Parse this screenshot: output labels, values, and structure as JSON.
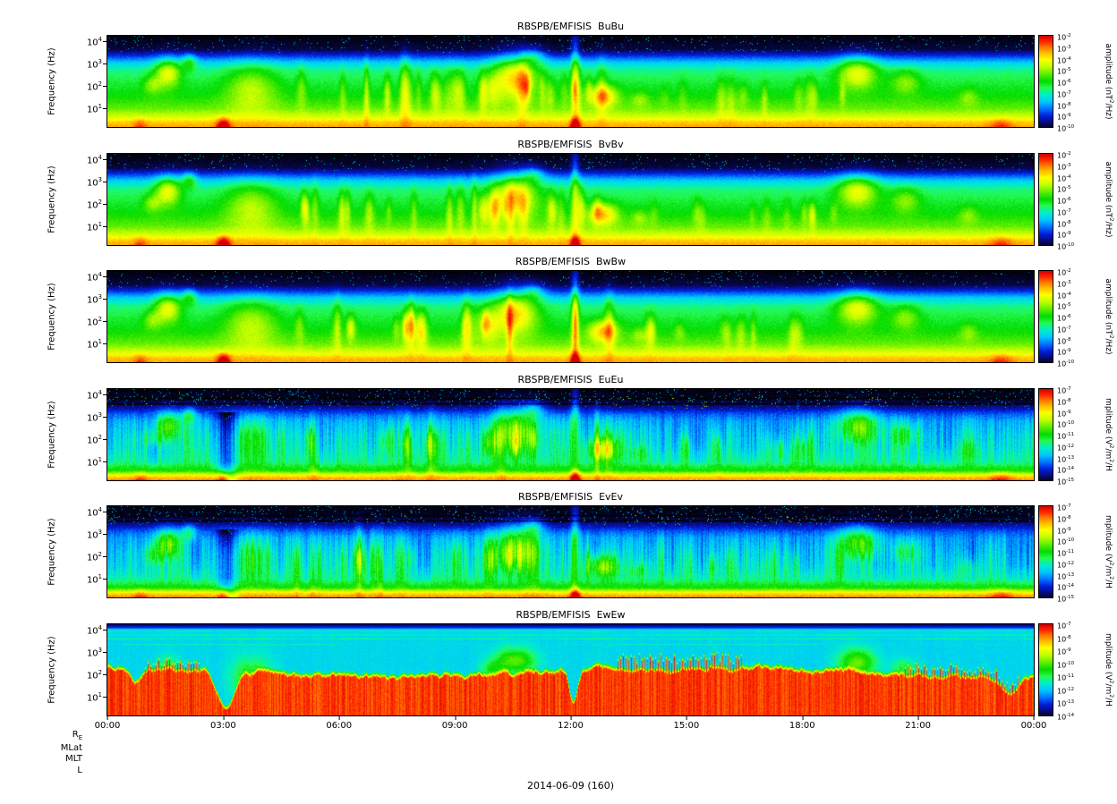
{
  "chart_data": [
    {
      "type": "heatmap",
      "title": "RBSPB/EMFISIS  BuBu",
      "ylabel": "Frequency (Hz)",
      "y_scale": "log",
      "y_ticks": [
        "10^4",
        "10^3",
        "10^2",
        "10^1"
      ],
      "colorbar": {
        "scale": "log",
        "label": "amplitude (nT^2/Hz)",
        "ticks": [
          "10^-2",
          "10^-3",
          "10^-4",
          "10^-5",
          "10^-6",
          "10^-7",
          "10^-8",
          "10^-9",
          "10^-10"
        ]
      }
    },
    {
      "type": "heatmap",
      "title": "RBSPB/EMFISIS  BvBv",
      "ylabel": "Frequency (Hz)",
      "y_scale": "log",
      "y_ticks": [
        "10^4",
        "10^3",
        "10^2",
        "10^1"
      ],
      "colorbar": {
        "scale": "log",
        "label": "amplitude (nT^2/Hz)",
        "ticks": [
          "10^-2",
          "10^-3",
          "10^-4",
          "10^-5",
          "10^-6",
          "10^-7",
          "10^-8",
          "10^-9",
          "10^-10"
        ]
      }
    },
    {
      "type": "heatmap",
      "title": "RBSPB/EMFISIS  BwBw",
      "ylabel": "Frequency (Hz)",
      "y_scale": "log",
      "y_ticks": [
        "10^4",
        "10^3",
        "10^2",
        "10^1"
      ],
      "colorbar": {
        "scale": "log",
        "label": "amplitude (nT^2/Hz)",
        "ticks": [
          "10^-2",
          "10^-3",
          "10^-4",
          "10^-5",
          "10^-6",
          "10^-7",
          "10^-8",
          "10^-9",
          "10^-10"
        ]
      }
    },
    {
      "type": "heatmap",
      "title": "RBSPB/EMFISIS  EuEu",
      "ylabel": "Frequency (Hz)",
      "y_scale": "log",
      "y_ticks": [
        "10^4",
        "10^3",
        "10^2",
        "10^1"
      ],
      "colorbar": {
        "scale": "log",
        "label": "mplitude (V^2/m^2/H",
        "ticks": [
          "10^-7",
          "10^-8",
          "10^-9",
          "10^-10",
          "10^-11",
          "10^-12",
          "10^-13",
          "10^-14",
          "10^-15"
        ]
      }
    },
    {
      "type": "heatmap",
      "title": "RBSPB/EMFISIS  EvEv",
      "ylabel": "Frequency (Hz)",
      "y_scale": "log",
      "y_ticks": [
        "10^4",
        "10^3",
        "10^2",
        "10^1"
      ],
      "colorbar": {
        "scale": "log",
        "label": "mplitude (V^2/m^2/H",
        "ticks": [
          "10^-7",
          "10^-8",
          "10^-9",
          "10^-10",
          "10^-11",
          "10^-12",
          "10^-13",
          "10^-14",
          "10^-15"
        ]
      }
    },
    {
      "type": "heatmap",
      "title": "RBSPB/EMFISIS  EwEw",
      "ylabel": "Frequency (Hz)",
      "y_scale": "log",
      "y_ticks": [
        "10^4",
        "10^3",
        "10^2",
        "10^1"
      ],
      "colorbar": {
        "scale": "log",
        "label": "mplitude (V^2/m^2/H",
        "ticks": [
          "10^-7",
          "10^-8",
          "10^-9",
          "10^-10",
          "10^-11",
          "10^-12",
          "10^-13",
          "10^-14"
        ]
      }
    }
  ],
  "x_axis": {
    "ticks": [
      "00:00",
      "03:00",
      "06:00",
      "09:00",
      "12:00",
      "15:00",
      "18:00",
      "21:00",
      "00:00"
    ]
  },
  "footer": {
    "side_labels": [
      "R_E",
      "MLat",
      "MLT",
      "L"
    ],
    "date": "2014-06-09 (160)"
  }
}
